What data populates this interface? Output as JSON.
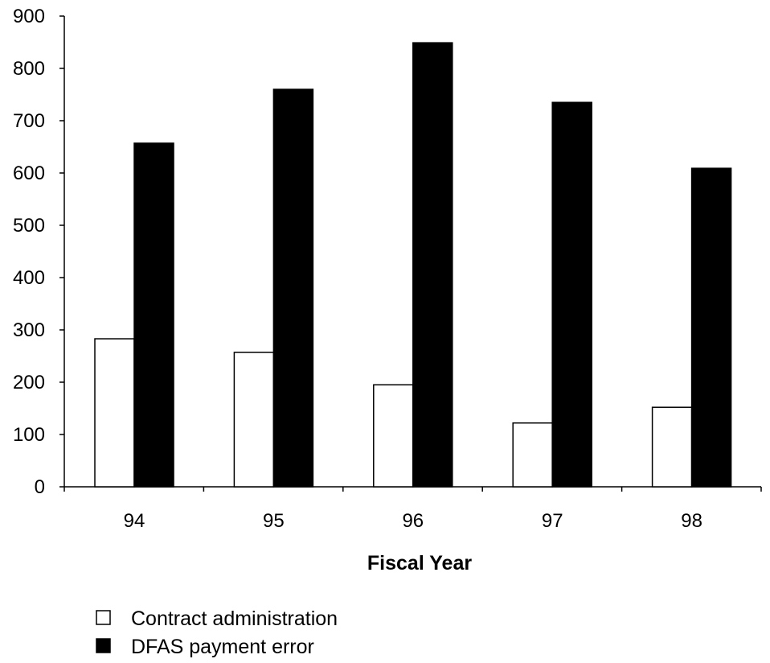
{
  "chart_data": {
    "type": "bar",
    "title": "",
    "xlabel": "Fiscal Year",
    "ylabel": "",
    "categories": [
      "94",
      "95",
      "96",
      "97",
      "98"
    ],
    "series": [
      {
        "name": "Contract administration",
        "values": [
          283,
          257,
          195,
          122,
          152
        ],
        "color": "#ffffff"
      },
      {
        "name": "DFAS payment error",
        "values": [
          657,
          760,
          849,
          735,
          609
        ],
        "color": "#000000"
      }
    ],
    "ylim": [
      0,
      900
    ],
    "yticks": [
      "0",
      "100",
      "200",
      "300",
      "400",
      "500",
      "600",
      "700",
      "800",
      "900"
    ],
    "grid": false,
    "legend_position": "bottom-left"
  }
}
